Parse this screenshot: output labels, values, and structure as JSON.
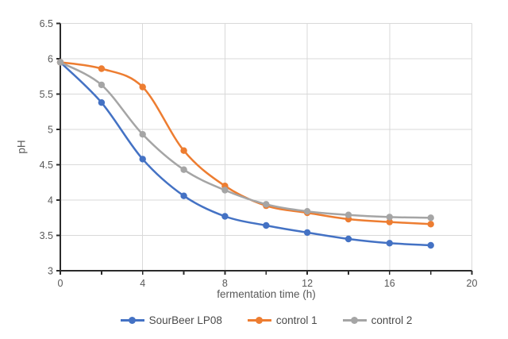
{
  "chart_data": {
    "type": "line",
    "title": "",
    "xlabel": "fermentation time (h)",
    "ylabel": "pH",
    "xlim": [
      0,
      20
    ],
    "ylim": [
      3,
      6.5
    ],
    "x_tick_labels": [
      0,
      4,
      8,
      12,
      16,
      20
    ],
    "x_minor_tick_step": 2,
    "x_gridline_step": 4,
    "y_tick_step": 0.5,
    "grid": true,
    "smooth_lines": true,
    "legend_position": "bottom",
    "x": [
      0,
      2,
      4,
      6,
      8,
      10,
      12,
      14,
      16,
      18
    ],
    "series": [
      {
        "name": "SourBeer LP08",
        "color": "#4472C4",
        "values": [
          5.95,
          5.38,
          4.58,
          4.06,
          3.77,
          3.64,
          3.54,
          3.45,
          3.39,
          3.36
        ]
      },
      {
        "name": "control 1",
        "color": "#ED7D31",
        "values": [
          5.95,
          5.86,
          5.6,
          4.7,
          4.2,
          3.92,
          3.82,
          3.73,
          3.69,
          3.66
        ]
      },
      {
        "name": "control 2",
        "color": "#A5A5A5",
        "values": [
          5.95,
          5.63,
          4.93,
          4.43,
          4.14,
          3.94,
          3.84,
          3.79,
          3.76,
          3.75
        ]
      }
    ]
  },
  "styles": {
    "background": "#FFFFFF",
    "grid_color": "#D9D9D9",
    "axis_color": "#2b2b2b",
    "tick_label_color": "#595959",
    "axis_title_color": "#595959",
    "legend_text_color": "#4a4a4a"
  }
}
